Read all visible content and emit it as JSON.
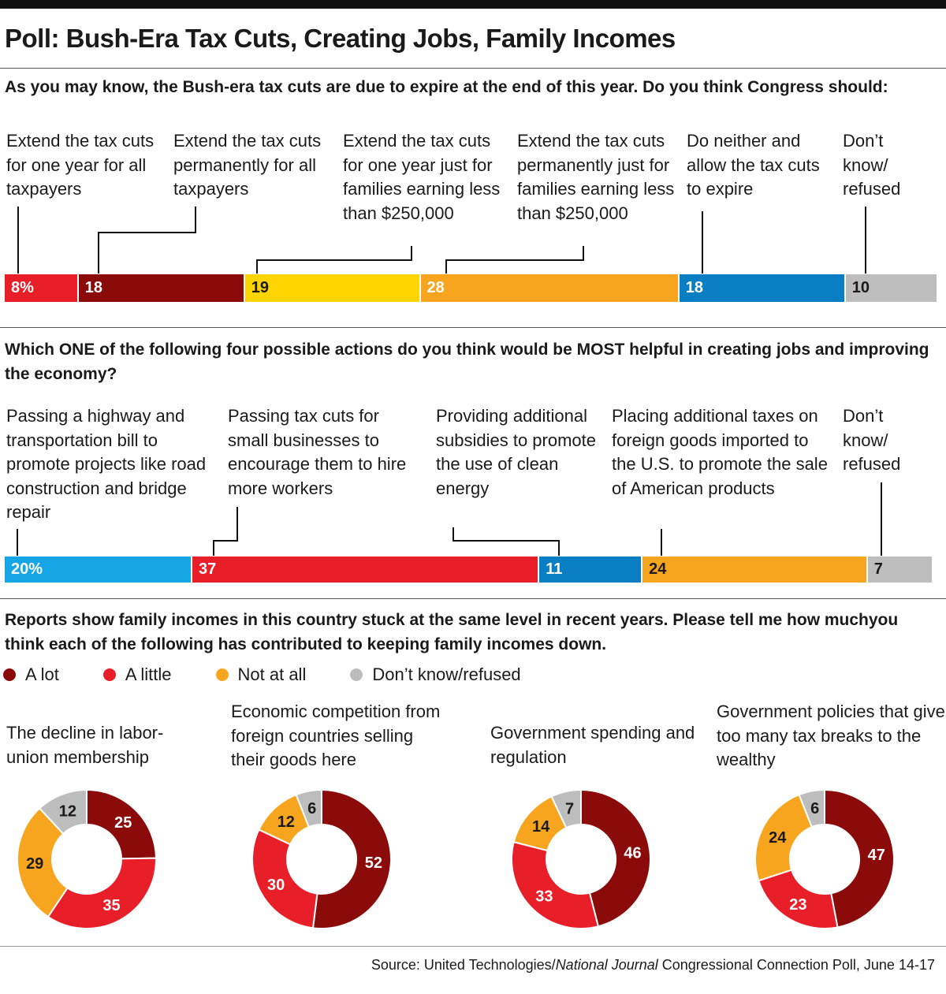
{
  "title": "Poll: Bush-Era Tax Cuts, Creating Jobs, Family Incomes",
  "colors": {
    "dark_red": "#8b0a0a",
    "red": "#e81e28",
    "yellow": "#ffd400",
    "orange": "#f7a51e",
    "blue": "#0a7ec2",
    "light_blue": "#16a6e8",
    "gray": "#bdbdbd"
  },
  "chart_data": [
    {
      "type": "bar",
      "title": "As you may know, the Bush-era tax cuts are due to expire at the end of this year.  Do you think Congress should:",
      "categories": [
        "Extend the tax cuts for one year for all taxpayers",
        "Extend the tax cuts permanently for all taxpayers",
        "Extend the tax cuts for one year just for families earning less than $250,000",
        "Extend the tax cuts permanently just for families earning less than $250,000",
        "Do neither and allow the tax cuts to expire",
        "Don’t know/ refused"
      ],
      "values": [
        8,
        18,
        19,
        28,
        18,
        10
      ],
      "value_labels": [
        "8%",
        "18",
        "19",
        "28",
        "18",
        "10"
      ],
      "stacked": true
    },
    {
      "type": "bar",
      "title": "Which ONE of the following four possible actions do you think would be MOST helpful in creating jobs and improving the economy?",
      "categories": [
        "Passing a highway and transportation bill to promote projects like road construction and bridge repair",
        "Passing tax cuts for small businesses to encourage them to hire more workers",
        "Providing additional subsidies to promote the use of clean energy",
        "Placing additional taxes on foreign goods imported to the U.S. to promote the sale of American products",
        "Don’t know/ refused"
      ],
      "values": [
        20,
        37,
        11,
        24,
        7
      ],
      "value_labels": [
        "20%",
        "37",
        "11",
        "24",
        "7"
      ],
      "stacked": true
    },
    {
      "type": "pie",
      "title": "Reports show family incomes in this country stuck at the same level in recent years.  Please tell me how muchyou think each of the following has contributed to keeping family incomes down.",
      "legend": [
        "A lot",
        "A little",
        "Not at all",
        "Don’t know/refused"
      ],
      "legend_placement": "top-left",
      "donuts": [
        {
          "label": "The decline in labor-union membership",
          "values": [
            25,
            35,
            29,
            12
          ]
        },
        {
          "label": "Economic competition from foreign countries selling their goods here",
          "values": [
            52,
            30,
            12,
            6
          ]
        },
        {
          "label": "Government spending and regulation",
          "values": [
            46,
            33,
            14,
            7
          ]
        },
        {
          "label": "Government policies that give too many tax breaks to the wealthy",
          "values": [
            47,
            23,
            24,
            6
          ]
        }
      ]
    }
  ],
  "source": {
    "prefix": "Source: United Technologies/",
    "italic": "National Journal",
    "suffix": " Congressional Connection Poll, June 14-17"
  }
}
